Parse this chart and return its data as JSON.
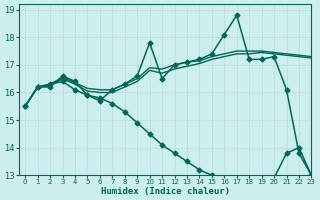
{
  "xlabel": "Humidex (Indice chaleur)",
  "bg_color": "#cceeee",
  "grid_color": "#bbddcc",
  "line_color": "#006655",
  "xlim": [
    -0.5,
    23
  ],
  "ylim": [
    13,
    19.2
  ],
  "yticks": [
    13,
    14,
    15,
    16,
    17,
    18,
    19
  ],
  "xticks": [
    0,
    1,
    2,
    3,
    4,
    5,
    6,
    7,
    8,
    9,
    10,
    11,
    12,
    13,
    14,
    15,
    16,
    17,
    18,
    19,
    20,
    21,
    22,
    23
  ],
  "series": [
    {
      "x": [
        0,
        1,
        2,
        3,
        4,
        5,
        6,
        7,
        8,
        9,
        10,
        11,
        12,
        13,
        14,
        15,
        16,
        17,
        18,
        19,
        20,
        21,
        22,
        23
      ],
      "y": [
        15.5,
        16.2,
        16.2,
        16.6,
        16.4,
        15.9,
        15.7,
        16.1,
        16.3,
        16.6,
        17.8,
        16.5,
        17.0,
        17.1,
        17.2,
        17.4,
        18.1,
        18.8,
        17.2,
        17.2,
        17.3,
        16.1,
        13.8,
        13.0
      ],
      "marker": "D",
      "markersize": 2.5,
      "lw": 1.1
    },
    {
      "x": [
        0,
        1,
        2,
        3,
        4,
        5,
        6,
        7,
        8,
        9,
        10,
        11,
        12,
        13,
        14,
        15,
        16,
        17,
        18,
        19,
        20,
        21,
        22,
        23
      ],
      "y": [
        15.5,
        16.2,
        16.3,
        16.4,
        16.1,
        15.9,
        15.8,
        15.6,
        15.3,
        14.9,
        14.5,
        14.1,
        13.8,
        13.5,
        13.2,
        13.0,
        12.9,
        12.9,
        12.9,
        12.9,
        12.9,
        13.8,
        14.0,
        13.0
      ],
      "marker": "D",
      "markersize": 2.5,
      "lw": 1.1
    },
    {
      "x": [
        0,
        1,
        2,
        3,
        4,
        5,
        6,
        7,
        8,
        9,
        10,
        11,
        12,
        13,
        14,
        15,
        16,
        17,
        18,
        19,
        20,
        21,
        22,
        23
      ],
      "y": [
        15.5,
        16.2,
        16.3,
        16.55,
        16.35,
        16.15,
        16.1,
        16.1,
        16.3,
        16.5,
        16.9,
        16.85,
        17.0,
        17.1,
        17.15,
        17.3,
        17.4,
        17.5,
        17.5,
        17.5,
        17.45,
        17.4,
        17.35,
        17.3
      ],
      "marker": null,
      "markersize": 0,
      "lw": 1.0
    },
    {
      "x": [
        0,
        1,
        2,
        3,
        4,
        5,
        6,
        7,
        8,
        9,
        10,
        11,
        12,
        13,
        14,
        15,
        16,
        17,
        18,
        19,
        20,
        21,
        22,
        23
      ],
      "y": [
        15.5,
        16.2,
        16.25,
        16.5,
        16.3,
        16.05,
        16.0,
        16.0,
        16.2,
        16.4,
        16.8,
        16.7,
        16.85,
        16.95,
        17.05,
        17.2,
        17.3,
        17.4,
        17.4,
        17.45,
        17.4,
        17.35,
        17.3,
        17.25
      ],
      "marker": null,
      "markersize": 0,
      "lw": 1.0
    }
  ]
}
